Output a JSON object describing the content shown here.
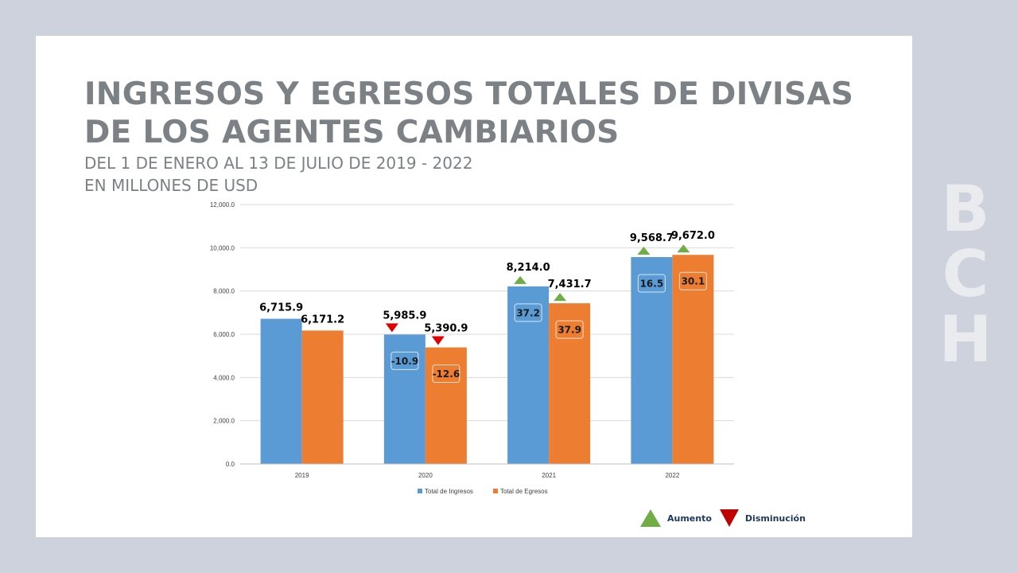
{
  "title_lines": [
    "INGRESOS Y EGRESOS TOTALES DE DIVISAS",
    "DE LOS AGENTES CAMBIARIOS"
  ],
  "subtitle_lines": [
    "DEL 1 DE ENERO AL 13 DE JULIO DE 2019 - 2022",
    "EN MILLONES DE USD"
  ],
  "brand_letters": [
    "B",
    "C",
    "H"
  ],
  "bottom_legend": {
    "increase_label": "Aumento",
    "decrease_label": "Disminución"
  },
  "colors": {
    "ingresos": "#5b9bd5",
    "egresos": "#ed7d31",
    "increase": "#70ad47",
    "decrease": "#e00000",
    "grid": "#d9d9d9",
    "axis_text": "#404040"
  },
  "chart_data": {
    "type": "bar",
    "title": "INGRESOS Y EGRESOS TOTALES DE DIVISAS DE LOS AGENTES CAMBIARIOS",
    "categories": [
      "2019",
      "2020",
      "2021",
      "2022"
    ],
    "ylim": [
      0,
      12000
    ],
    "yticks": [
      "0.0",
      "2,000.0",
      "4,000.0",
      "6,000.0",
      "8,000.0",
      "10,000.0",
      "12,000.0"
    ],
    "grid": true,
    "legend_position": "bottom",
    "series": [
      {
        "name": "Total de Ingresos",
        "values": [
          6715.9,
          5985.9,
          8214.0,
          9568.7
        ],
        "labels": [
          "6,715.9",
          "5,985.9",
          "8,214.0",
          "9,568.7"
        ],
        "pct_change": [
          "",
          "-10.9",
          "37.2",
          "16.5"
        ],
        "trend": [
          "",
          "down",
          "up",
          "up"
        ]
      },
      {
        "name": "Total de Egresos",
        "values": [
          6171.2,
          5390.9,
          7431.7,
          9672.0
        ],
        "labels": [
          "6,171.2",
          "5,390.9",
          "7,431.7",
          "9,672.0"
        ],
        "pct_change": [
          "",
          "-12.6",
          "37.9",
          "30.1"
        ],
        "trend": [
          "",
          "down",
          "up",
          "up"
        ]
      }
    ]
  }
}
